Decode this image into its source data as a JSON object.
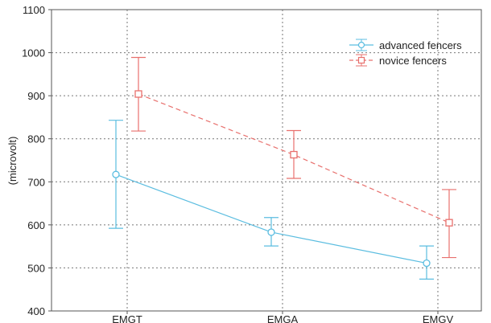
{
  "chart_data": {
    "type": "line",
    "title": "",
    "xlabel": "",
    "ylabel": "(microvolt)",
    "categories": [
      "EMGT",
      "EMGA",
      "EMGV"
    ],
    "ylim": [
      400,
      1100
    ],
    "yticks": [
      "400",
      "500",
      "600",
      "700",
      "800",
      "900",
      "1000",
      "1100"
    ],
    "grid": true,
    "legend_position": "top-right",
    "series": [
      {
        "name": "advanced fencers",
        "values": [
          717,
          583,
          511
        ],
        "error_low": [
          592,
          551,
          474
        ],
        "error_high": [
          843,
          617,
          551
        ],
        "color": "#5bbde0",
        "marker": "circle",
        "line_style": "solid"
      },
      {
        "name": "novice fencers",
        "values": [
          904,
          763,
          605
        ],
        "error_low": [
          818,
          708,
          524
        ],
        "error_high": [
          989,
          819,
          682
        ],
        "color": "#e8706d",
        "marker": "square",
        "line_style": "dashed"
      }
    ]
  }
}
